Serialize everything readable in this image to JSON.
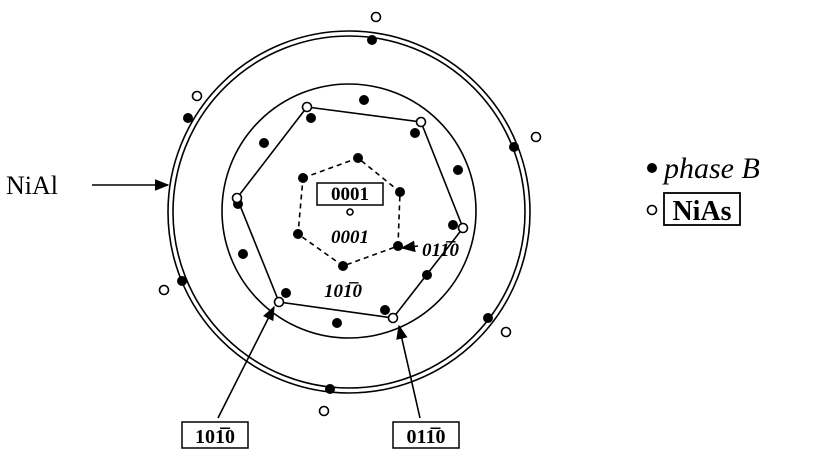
{
  "labels": {
    "nial": "NiAl",
    "phase_b": "phase B",
    "nias": "NiAs",
    "center_boxed": "0001",
    "center_italic": "0001",
    "right_italic": "011̅0",
    "bottom_italic": "101̅0",
    "box_left": "101̅0",
    "box_right": "011̅0"
  }
}
